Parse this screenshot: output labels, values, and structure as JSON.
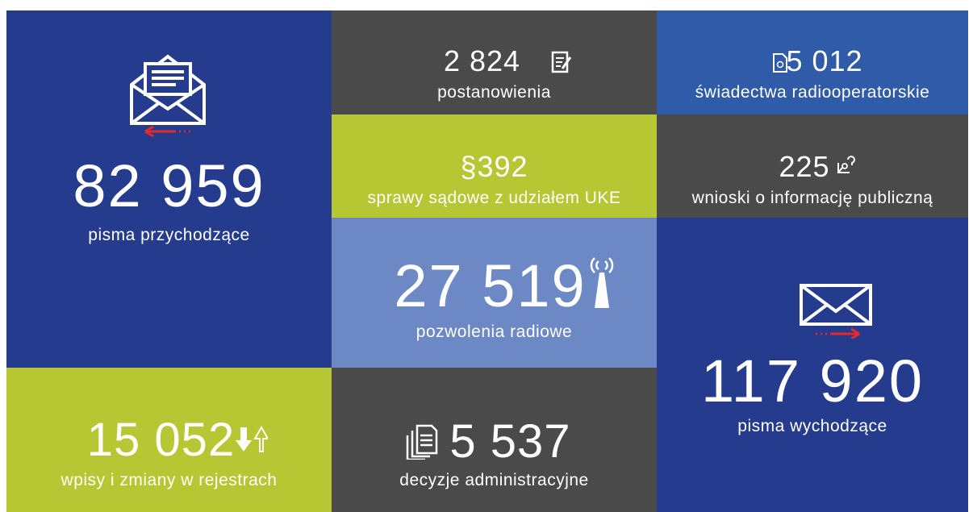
{
  "tiles": [
    {
      "value": "82 959",
      "label": "pisma przychodzące"
    },
    {
      "value": "2 824",
      "label": "postanowienia"
    },
    {
      "value": "5 012",
      "label": "świadectwa radiooperatorskie"
    },
    {
      "value": "§392",
      "label": "sprawy sądowe z udziałem UKE"
    },
    {
      "value": "225",
      "label": "wnioski o informację publiczną"
    },
    {
      "value": "27 519",
      "label": "pozwolenia radiowe"
    },
    {
      "value": "117 920",
      "label": "pisma wychodzące"
    },
    {
      "value": "15 052",
      "label": "wpisy i zmiany w rejestrach"
    },
    {
      "value": "5 537",
      "label": "decyzje administracyjne"
    }
  ]
}
